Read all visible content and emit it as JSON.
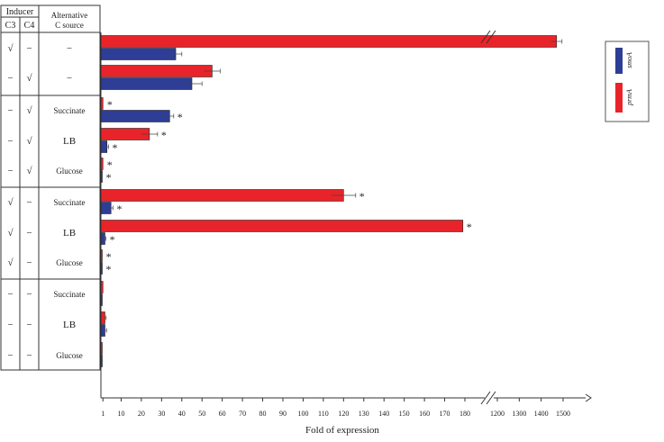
{
  "table": {
    "header_inducer": "Inducer",
    "header_c3": "C3",
    "header_c4": "C4",
    "header_alt_line1": "Alternative",
    "header_alt_line2": "C source",
    "rows": [
      {
        "c3": "√",
        "c4": "−",
        "alt": "−"
      },
      {
        "c3": "−",
        "c4": "√",
        "alt": "−"
      },
      {
        "c3": "−",
        "c4": "√",
        "alt": "Succinate"
      },
      {
        "c3": "−",
        "c4": "√",
        "alt": "LB"
      },
      {
        "c3": "−",
        "c4": "√",
        "alt": "Glucose"
      },
      {
        "c3": "√",
        "c4": "−",
        "alt": "Succinate"
      },
      {
        "c3": "√",
        "c4": "−",
        "alt": "LB"
      },
      {
        "c3": "√",
        "c4": "−",
        "alt": "Glucose"
      },
      {
        "c3": "−",
        "c4": "−",
        "alt": "Succinate"
      },
      {
        "c3": "−",
        "c4": "−",
        "alt": "LB"
      },
      {
        "c3": "−",
        "c4": "−",
        "alt": "Glucose"
      }
    ]
  },
  "chart_data": {
    "type": "bar",
    "orientation": "horizontal",
    "xlabel": "Fold of expression",
    "axis_break": true,
    "x_ticks_lower": [
      "1",
      "10",
      "20",
      "30",
      "40",
      "50",
      "60",
      "70",
      "80",
      "90",
      "100",
      "110",
      "120",
      "130",
      "140",
      "150",
      "160",
      "170",
      "180"
    ],
    "x_ticks_upper": [
      "1200",
      "1300",
      "1400",
      "1500"
    ],
    "xlim_lower": [
      0,
      180
    ],
    "xlim_upper": [
      1150,
      1500
    ],
    "legend_position": "right",
    "series": [
      {
        "name": "prmA",
        "color": "#e8242a",
        "values": [
          1470,
          55,
          1,
          24,
          1,
          120,
          179,
          0.5,
          1,
          2,
          0.5
        ],
        "errors": [
          25,
          4,
          0.3,
          4,
          0.2,
          6,
          2,
          0.2,
          0.3,
          0.6,
          0.2
        ],
        "significant": [
          false,
          false,
          true,
          true,
          true,
          true,
          true,
          true,
          false,
          false,
          false
        ]
      },
      {
        "name": "smoA",
        "color": "#2e3d96",
        "values": [
          37,
          45,
          34,
          3,
          0.5,
          5,
          2,
          0.3,
          0.5,
          2,
          0.3
        ],
        "errors": [
          3,
          5,
          2,
          0.8,
          0.2,
          1,
          0.5,
          0.1,
          0.2,
          0.8,
          0.1
        ],
        "significant": [
          false,
          false,
          true,
          true,
          true,
          true,
          true,
          true,
          false,
          false,
          false
        ]
      }
    ],
    "significance_mark": "*",
    "grid": false
  }
}
